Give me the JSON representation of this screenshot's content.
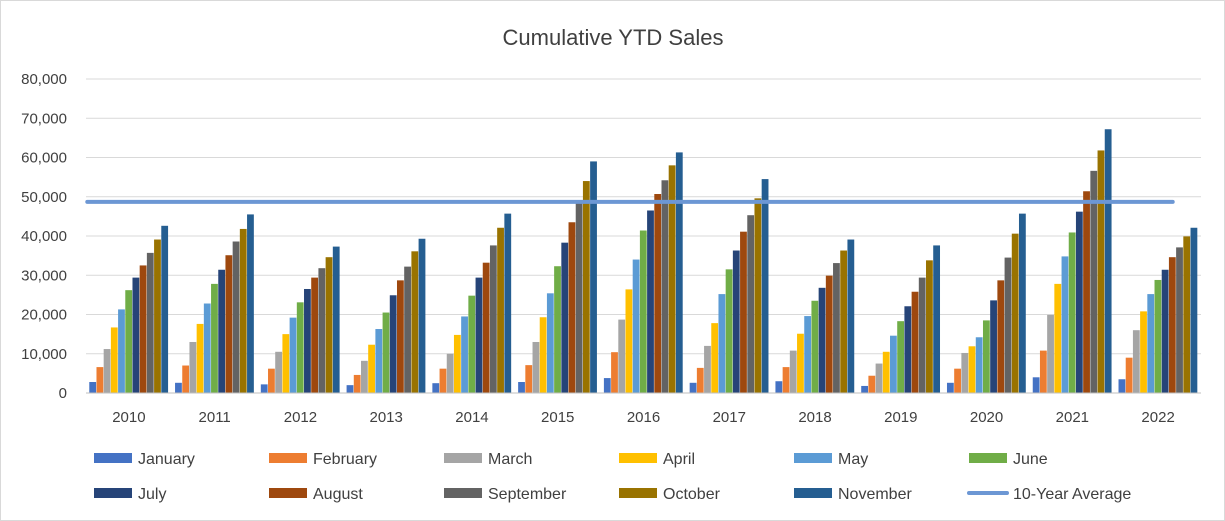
{
  "chart_data": {
    "type": "bar",
    "title": "Cumulative YTD Sales",
    "xlabel": "",
    "ylabel": "",
    "ylim": [
      0,
      80000
    ],
    "yticks": [
      "0",
      "10,000",
      "20,000",
      "30,000",
      "40,000",
      "50,000",
      "60,000",
      "70,000",
      "80,000"
    ],
    "grid": true,
    "legend_position": "bottom",
    "categories": [
      "2010",
      "2011",
      "2012",
      "2013",
      "2014",
      "2015",
      "2016",
      "2017",
      "2018",
      "2019",
      "2020",
      "2021",
      "2022"
    ],
    "series": [
      {
        "name": "January",
        "color": "#4472C4",
        "values": [
          2800,
          2600,
          2200,
          2000,
          2500,
          2800,
          3800,
          2600,
          3000,
          1800,
          2600,
          4000,
          3500
        ]
      },
      {
        "name": "February",
        "color": "#ED7D31",
        "values": [
          6600,
          7000,
          6200,
          4600,
          6200,
          7100,
          10400,
          6400,
          6600,
          4400,
          6200,
          10800,
          9000
        ]
      },
      {
        "name": "March",
        "color": "#A5A5A5",
        "values": [
          11200,
          13000,
          10500,
          8200,
          10000,
          13000,
          18700,
          12000,
          10800,
          7500,
          10200,
          19900,
          16000
        ]
      },
      {
        "name": "April",
        "color": "#FFC000",
        "values": [
          16700,
          17600,
          15000,
          12300,
          14800,
          19300,
          26400,
          17800,
          15100,
          10500,
          11900,
          27800,
          20800
        ]
      },
      {
        "name": "May",
        "color": "#5B9BD5",
        "values": [
          21300,
          22800,
          19200,
          16300,
          19500,
          25400,
          34000,
          25200,
          19600,
          14600,
          14200,
          34800,
          25200
        ]
      },
      {
        "name": "June",
        "color": "#70AD47",
        "values": [
          26200,
          27800,
          23100,
          20500,
          24800,
          32300,
          41400,
          31500,
          23500,
          18300,
          18500,
          40900,
          28800
        ]
      },
      {
        "name": "July",
        "color": "#264478",
        "values": [
          29400,
          31400,
          26500,
          24900,
          29400,
          38300,
          46500,
          36300,
          26800,
          22100,
          23600,
          46200,
          31400
        ]
      },
      {
        "name": "August",
        "color": "#9E480E",
        "values": [
          32500,
          35100,
          29400,
          28700,
          33200,
          43500,
          50700,
          41100,
          29900,
          25800,
          28700,
          51400,
          34600
        ]
      },
      {
        "name": "September",
        "color": "#636363",
        "values": [
          35700,
          38600,
          31800,
          32200,
          37600,
          48300,
          54200,
          45300,
          33100,
          29400,
          34500,
          56600,
          37100
        ]
      },
      {
        "name": "October",
        "color": "#997300",
        "values": [
          39100,
          41800,
          34600,
          36100,
          42100,
          54000,
          58000,
          49600,
          36300,
          33800,
          40600,
          61800,
          39900
        ]
      },
      {
        "name": "November",
        "color": "#255E91",
        "values": [
          42600,
          45500,
          37300,
          39300,
          45700,
          59000,
          61300,
          54500,
          39100,
          37600,
          45700,
          67200,
          42100
        ]
      }
    ],
    "average_line": {
      "name": "10-Year Average",
      "color": "#6C97D4",
      "value": 48700
    }
  }
}
